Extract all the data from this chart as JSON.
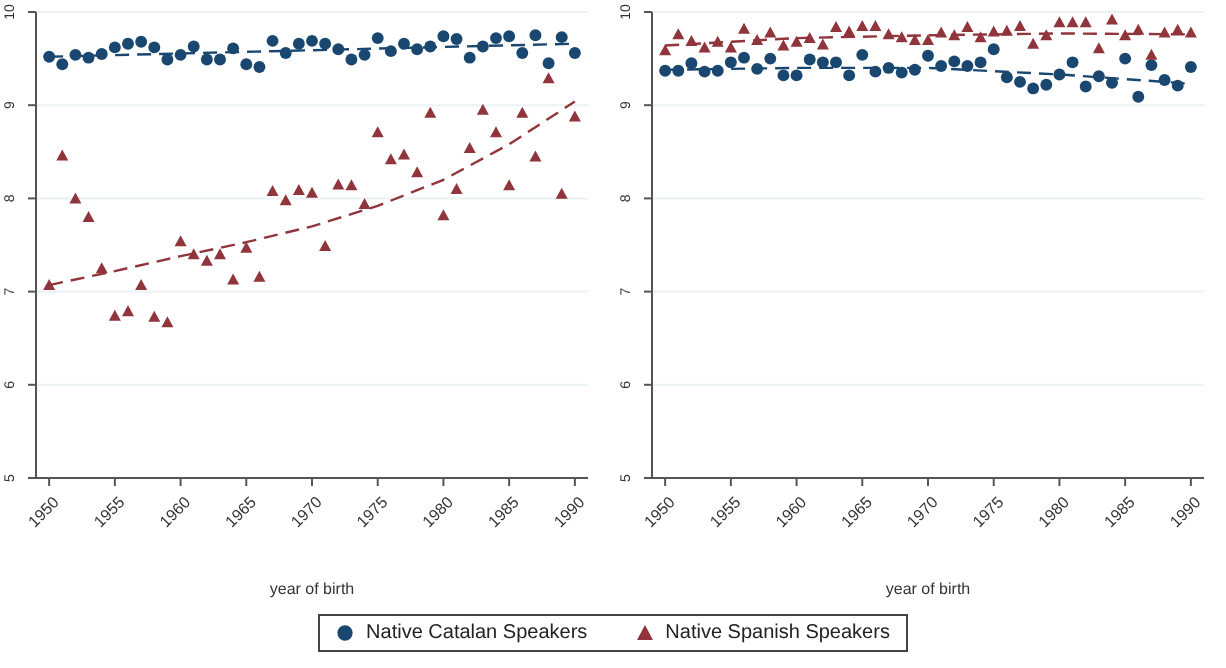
{
  "chart_data": [
    {
      "type": "scatter",
      "xlabel": "year of birth",
      "xlim": [
        1949,
        1991
      ],
      "xticks": [
        1950,
        1955,
        1960,
        1965,
        1970,
        1975,
        1980,
        1985,
        1990
      ],
      "ylim": [
        5,
        10
      ],
      "yticks": [
        5,
        6,
        7,
        8,
        9,
        10
      ],
      "grid": "y",
      "legend": "bottom",
      "x": [
        1950,
        1951,
        1952,
        1953,
        1954,
        1955,
        1956,
        1957,
        1958,
        1959,
        1960,
        1961,
        1962,
        1963,
        1964,
        1965,
        1966,
        1967,
        1968,
        1969,
        1970,
        1971,
        1972,
        1973,
        1974,
        1975,
        1976,
        1977,
        1978,
        1979,
        1980,
        1981,
        1982,
        1983,
        1984,
        1985,
        1986,
        1987,
        1988,
        1989,
        1990
      ],
      "series": [
        {
          "name": "Native Catalan Speakers",
          "color": "#1a476f",
          "marker": "circle",
          "values": [
            9.52,
            9.44,
            9.54,
            9.51,
            9.55,
            9.62,
            9.66,
            9.68,
            9.62,
            9.49,
            9.54,
            9.63,
            9.49,
            9.49,
            9.61,
            9.44,
            9.41,
            9.69,
            9.56,
            9.66,
            9.69,
            9.66,
            9.6,
            9.49,
            9.54,
            9.72,
            9.58,
            9.66,
            9.6,
            9.63,
            9.74,
            9.71,
            9.51,
            9.63,
            9.72,
            9.74,
            9.56,
            9.75,
            9.45,
            9.73,
            9.56
          ]
        },
        {
          "name": "Native Spanish Speakers",
          "color": "#90353b",
          "marker": "triangle",
          "values": [
            7.07,
            8.46,
            8.0,
            7.8,
            7.25,
            6.74,
            6.79,
            7.07,
            6.73,
            6.67,
            7.54,
            7.4,
            7.33,
            7.4,
            7.13,
            7.47,
            7.16,
            8.08,
            7.98,
            8.09,
            8.06,
            7.49,
            8.15,
            8.14,
            7.94,
            8.71,
            8.42,
            8.47,
            8.28,
            8.92,
            7.82,
            8.1,
            8.54,
            8.95,
            8.71,
            8.14,
            8.92,
            8.45,
            9.29,
            8.05,
            8.88
          ]
        },
        {
          "type": "line",
          "color": "#1a476f",
          "line_style": "dashed",
          "marker": "none",
          "x": [
            1950,
            1970,
            1990
          ],
          "values": [
            9.52,
            9.59,
            9.66
          ]
        },
        {
          "type": "line",
          "color": "#90353b",
          "line_style": "dashed",
          "marker": "none",
          "x": [
            1950,
            1955,
            1960,
            1965,
            1970,
            1975,
            1980,
            1985,
            1990
          ],
          "values": [
            7.07,
            7.22,
            7.38,
            7.53,
            7.7,
            7.92,
            8.2,
            8.58,
            9.04
          ]
        }
      ]
    },
    {
      "type": "scatter",
      "xlabel": "year of birth",
      "xlim": [
        1949,
        1991
      ],
      "xticks": [
        1950,
        1955,
        1960,
        1965,
        1970,
        1975,
        1980,
        1985,
        1990
      ],
      "ylim": [
        5,
        10
      ],
      "yticks": [
        5,
        6,
        7,
        8,
        9,
        10
      ],
      "grid": "y",
      "x": [
        1950,
        1951,
        1952,
        1953,
        1954,
        1955,
        1956,
        1957,
        1958,
        1959,
        1960,
        1961,
        1962,
        1963,
        1964,
        1965,
        1966,
        1967,
        1968,
        1969,
        1970,
        1971,
        1972,
        1973,
        1974,
        1975,
        1976,
        1977,
        1978,
        1979,
        1980,
        1981,
        1982,
        1983,
        1984,
        1985,
        1986,
        1987,
        1988,
        1989,
        1990
      ],
      "series": [
        {
          "color": "#1a476f",
          "marker": "circle",
          "values": [
            9.37,
            9.37,
            9.45,
            9.36,
            9.37,
            9.46,
            9.51,
            9.39,
            9.5,
            9.32,
            9.32,
            9.49,
            9.46,
            9.46,
            9.32,
            9.54,
            9.36,
            9.4,
            9.35,
            9.38,
            9.53,
            9.42,
            9.47,
            9.42,
            9.46,
            9.6,
            9.3,
            9.25,
            9.18,
            9.22,
            9.33,
            9.46,
            9.2,
            9.31,
            9.24,
            9.5,
            9.09,
            9.43,
            9.27,
            9.21,
            9.41
          ]
        },
        {
          "color": "#90353b",
          "marker": "triangle",
          "values": [
            9.59,
            9.76,
            9.69,
            9.62,
            9.68,
            9.62,
            9.82,
            9.7,
            9.78,
            9.64,
            9.68,
            9.72,
            9.65,
            9.84,
            9.79,
            9.85,
            9.85,
            9.76,
            9.73,
            9.7,
            9.7,
            9.78,
            9.75,
            9.84,
            9.73,
            9.79,
            9.8,
            9.85,
            9.66,
            9.75,
            9.89,
            9.89,
            9.89,
            9.61,
            9.92,
            9.75,
            9.81,
            9.54,
            9.78,
            9.81,
            9.78
          ]
        },
        {
          "type": "line",
          "color": "#1a476f",
          "line_style": "dashed",
          "marker": "none",
          "x": [
            1950,
            1960,
            1970,
            1980,
            1990
          ],
          "values": [
            9.38,
            9.4,
            9.4,
            9.33,
            9.23
          ]
        },
        {
          "type": "line",
          "color": "#90353b",
          "line_style": "dashed",
          "marker": "none",
          "x": [
            1950,
            1960,
            1970,
            1980,
            1990
          ],
          "values": [
            9.64,
            9.72,
            9.75,
            9.77,
            9.76
          ]
        }
      ]
    }
  ]
}
